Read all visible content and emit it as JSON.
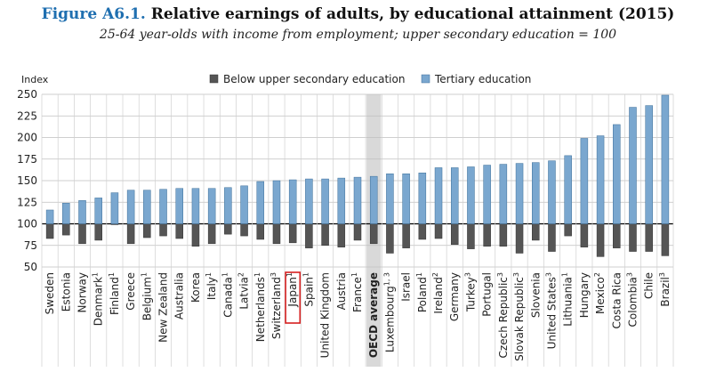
{
  "figure": {
    "number": "Figure A6.1.",
    "title": "Relative earnings of adults, by educational attainment (2015)",
    "subtitle": "25-64 year-olds with income from employment; upper secondary education = 100"
  },
  "chart_data": {
    "type": "bar",
    "ylabel": "Index",
    "ylim": [
      50,
      250
    ],
    "baseline": 100,
    "yticks": [
      50,
      75,
      100,
      125,
      150,
      175,
      200,
      225,
      250
    ],
    "grid": true,
    "legend_position": "top",
    "highlighted_category": "OECD average",
    "boxed_category": "Japan",
    "categories": [
      {
        "name": "Sweden",
        "sup": ""
      },
      {
        "name": "Estonia",
        "sup": ""
      },
      {
        "name": "Norway",
        "sup": ""
      },
      {
        "name": "Denmark",
        "sup": "1"
      },
      {
        "name": "Finland",
        "sup": "1"
      },
      {
        "name": "Greece",
        "sup": ""
      },
      {
        "name": "Belgium",
        "sup": "1"
      },
      {
        "name": "New Zealand",
        "sup": ""
      },
      {
        "name": "Australia",
        "sup": ""
      },
      {
        "name": "Korea",
        "sup": ""
      },
      {
        "name": "Italy",
        "sup": "1"
      },
      {
        "name": "Canada",
        "sup": "1"
      },
      {
        "name": "Latvia",
        "sup": "2"
      },
      {
        "name": "Netherlands",
        "sup": "1"
      },
      {
        "name": "Switzerland",
        "sup": "3"
      },
      {
        "name": "Japan",
        "sup": "1"
      },
      {
        "name": "Spain",
        "sup": "1"
      },
      {
        "name": "United Kingdom",
        "sup": ""
      },
      {
        "name": "Austria",
        "sup": ""
      },
      {
        "name": "France",
        "sup": "1"
      },
      {
        "name": "OECD average",
        "sup": ""
      },
      {
        "name": "Luxembourg",
        "sup": "1, 3"
      },
      {
        "name": "Israel",
        "sup": ""
      },
      {
        "name": "Poland",
        "sup": "1"
      },
      {
        "name": "Ireland",
        "sup": "2"
      },
      {
        "name": "Germany",
        "sup": ""
      },
      {
        "name": "Turkey",
        "sup": "3"
      },
      {
        "name": "Portugal",
        "sup": ""
      },
      {
        "name": "Czech Republic",
        "sup": "3"
      },
      {
        "name": "Slovak Republic",
        "sup": "3"
      },
      {
        "name": "Slovenia",
        "sup": ""
      },
      {
        "name": "United States",
        "sup": "3"
      },
      {
        "name": "Lithuania",
        "sup": "1"
      },
      {
        "name": "Hungary",
        "sup": ""
      },
      {
        "name": "Mexico",
        "sup": "2"
      },
      {
        "name": "Costa Rica",
        "sup": ""
      },
      {
        "name": "Colombia",
        "sup": "3"
      },
      {
        "name": "Chile",
        "sup": ""
      },
      {
        "name": "Brazil",
        "sup": "3"
      }
    ],
    "series": [
      {
        "name": "Below upper secondary education",
        "color": "#555555",
        "values": [
          83,
          87,
          77,
          81,
          99,
          77,
          84,
          86,
          83,
          74,
          77,
          88,
          86,
          82,
          77,
          78,
          72,
          75,
          73,
          81,
          77,
          66,
          72,
          82,
          83,
          76,
          71,
          74,
          74,
          66,
          81,
          68,
          86,
          73,
          62,
          72,
          68,
          68,
          63
        ]
      },
      {
        "name": "Tertiary education",
        "color": "#7aa7cf",
        "values": [
          116,
          124,
          127,
          130,
          136,
          139,
          139,
          140,
          141,
          141,
          141,
          142,
          144,
          149,
          150,
          151,
          152,
          152,
          153,
          154,
          155,
          158,
          158,
          159,
          165,
          165,
          166,
          168,
          169,
          170,
          171,
          173,
          179,
          199,
          202,
          215,
          235,
          237,
          249
        ]
      }
    ]
  }
}
